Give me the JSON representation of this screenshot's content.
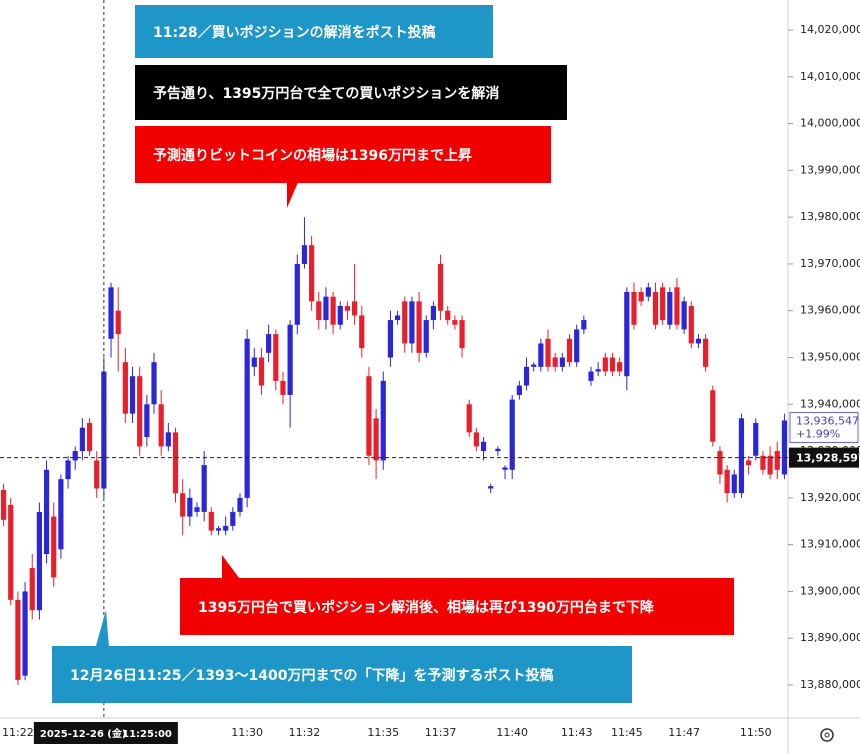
{
  "chart_data": {
    "type": "candlestick",
    "colors": {
      "up": "#2b27d9",
      "down": "#e8202c"
    },
    "categories": [
      null,
      null,
      "11:22",
      null,
      null,
      null,
      null,
      null,
      null,
      null,
      null,
      null,
      null,
      null,
      "11:25:00",
      null,
      null,
      null,
      null,
      null,
      null,
      null,
      null,
      null,
      null,
      null,
      null,
      null,
      null,
      null,
      null,
      null,
      null,
      null,
      "11:30",
      null,
      null,
      null,
      null,
      null,
      null,
      null,
      "11:32",
      null,
      null,
      null,
      null,
      null,
      null,
      null,
      null,
      null,
      null,
      "11:35",
      null,
      null,
      null,
      null,
      null,
      null,
      null,
      "11:37",
      null,
      null,
      null,
      null,
      null,
      null,
      null,
      null,
      null,
      "11:40",
      null,
      null,
      null,
      null,
      null,
      null,
      null,
      null,
      "11:43",
      null,
      null,
      null,
      null,
      null,
      null,
      "11:45",
      null,
      null,
      null,
      null,
      null,
      null,
      null,
      "11:47",
      null,
      null,
      null,
      null,
      null,
      null,
      null,
      null,
      null,
      "11:50",
      null,
      null,
      null,
      null
    ],
    "crosshair_date": "2025-12-26 (金)",
    "ohlc": [
      [
        13921700,
        13923000,
        13914000,
        13915300
      ],
      [
        13918500,
        13920000,
        13897000,
        13898200
      ],
      [
        13898200,
        13900000,
        13880000,
        13881100
      ],
      [
        13882000,
        13902000,
        13881000,
        13900000
      ],
      [
        13905000,
        13908000,
        13894000,
        13896000
      ],
      [
        13896000,
        13919000,
        13894000,
        13917000
      ],
      [
        13908000,
        13928000,
        13906000,
        13926000
      ],
      [
        13916000,
        13919000,
        13901000,
        13903000
      ],
      [
        13909000,
        13925000,
        13907000,
        13924000
      ],
      [
        13924000,
        13929000,
        13922000,
        13928000
      ],
      [
        13928000,
        13931000,
        13926000,
        13930000
      ],
      [
        13930000,
        13937000,
        13928000,
        13935000
      ],
      [
        13936000,
        13937000,
        13929000,
        13930000
      ],
      [
        13928000,
        13930000,
        13920000,
        13922000
      ],
      [
        13922000,
        13950000,
        13920000,
        13947000
      ],
      [
        13954000,
        13966000,
        13950000,
        13965000
      ],
      [
        13960000,
        13965000,
        13947000,
        13955000
      ],
      [
        13949000,
        13952000,
        13936000,
        13938000
      ],
      [
        13938000,
        13948000,
        13936000,
        13946000
      ],
      [
        13946000,
        13948000,
        13929000,
        13931000
      ],
      [
        13933000,
        13942000,
        13931000,
        13940000
      ],
      [
        13940000,
        13951000,
        13938000,
        13949000
      ],
      [
        13940000,
        13943000,
        13929000,
        13931000
      ],
      [
        13931000,
        13936000,
        13930000,
        13934000
      ],
      [
        13934000,
        13935000,
        13919000,
        13921000
      ],
      [
        13921000,
        13924000,
        13912000,
        13916000
      ],
      [
        13916000,
        13922000,
        13914000,
        13920000
      ],
      [
        13917000,
        13919000,
        13916000,
        13918000
      ],
      [
        13917000,
        13930000,
        13915000,
        13927000
      ],
      [
        13917000,
        13918000,
        13912000,
        13913000
      ],
      [
        13913000,
        13914000,
        13912000,
        13913500
      ],
      [
        13913000,
        13916000,
        13912000,
        13914000
      ],
      [
        13914000,
        13918000,
        13913000,
        13917000
      ],
      [
        13917000,
        13921000,
        13916000,
        13920000
      ],
      [
        13920000,
        13956000,
        13918000,
        13954000
      ],
      [
        13948000,
        13952000,
        13946000,
        13950000
      ],
      [
        13950000,
        13952000,
        13942000,
        13944000
      ],
      [
        13951000,
        13957000,
        13949000,
        13955000
      ],
      [
        13955000,
        13956000,
        13943000,
        13945000
      ],
      [
        13945000,
        13947000,
        13940000,
        13942000
      ],
      [
        13942000,
        13958000,
        13935000,
        13957000
      ],
      [
        13957000,
        13972000,
        13955000,
        13970000
      ],
      [
        13970000,
        13980000,
        13969000,
        13974000
      ],
      [
        13974000,
        13976000,
        13960000,
        13962000
      ],
      [
        13962000,
        13964000,
        13956000,
        13958000
      ],
      [
        13958000,
        13965000,
        13956000,
        13963000
      ],
      [
        13963000,
        13964000,
        13955000,
        13957000
      ],
      [
        13957000,
        13962000,
        13956000,
        13961000
      ],
      [
        13961000,
        13962000,
        13958000,
        13960000
      ],
      [
        13962000,
        13970000,
        13957000,
        13959000
      ],
      [
        13959000,
        13961000,
        13950000,
        13952000
      ],
      [
        13946000,
        13948000,
        13927000,
        13929000
      ],
      [
        13937000,
        13939000,
        13924000,
        13928000
      ],
      [
        13928000,
        13947000,
        13926000,
        13945000
      ],
      [
        13950000,
        13960000,
        13948000,
        13958000
      ],
      [
        13958000,
        13960000,
        13957000,
        13959000
      ],
      [
        13962000,
        13963000,
        13951000,
        13953000
      ],
      [
        13953000,
        13963000,
        13951000,
        13962000
      ],
      [
        13962000,
        13964000,
        13949000,
        13951000
      ],
      [
        13951000,
        13959000,
        13950000,
        13958000
      ],
      [
        13958000,
        13962000,
        13956000,
        13961000
      ],
      [
        13970000,
        13972000,
        13958000,
        13960000
      ],
      [
        13960000,
        13961000,
        13957000,
        13958000
      ],
      [
        13958000,
        13959000,
        13956000,
        13957000
      ],
      [
        13958000,
        13959000,
        13950000,
        13952000
      ],
      [
        13940000,
        13941000,
        13933000,
        13934000
      ],
      [
        13934000,
        13935000,
        13930000,
        13931000
      ],
      [
        13930000,
        13933000,
        13928000,
        13932000
      ],
      [
        13922000,
        13923000,
        13921000,
        13922500
      ],
      [
        13930000,
        13931000,
        13929000,
        13930500
      ],
      [
        13926000,
        13927000,
        13924000,
        13926500
      ],
      [
        13926000,
        13942000,
        13924000,
        13941000
      ],
      [
        13942000,
        13945000,
        13941000,
        13944000
      ],
      [
        13944000,
        13950000,
        13943000,
        13948000
      ],
      [
        13948000,
        13949000,
        13947000,
        13948500
      ],
      [
        13948000,
        13954000,
        13947000,
        13953000
      ],
      [
        13954000,
        13956000,
        13947000,
        13948000
      ],
      [
        13950000,
        13951000,
        13947000,
        13948000
      ],
      [
        13948000,
        13951000,
        13947000,
        13950000
      ],
      [
        13954000,
        13955000,
        13948000,
        13949000
      ],
      [
        13949000,
        13957000,
        13948000,
        13956000
      ],
      [
        13956000,
        13959000,
        13955000,
        13958000
      ],
      [
        13945000,
        13948000,
        13944000,
        13947000
      ],
      [
        13947000,
        13949000,
        13946000,
        13947500
      ],
      [
        13950000,
        13951000,
        13946000,
        13947000
      ],
      [
        13950000,
        13951000,
        13946000,
        13947000
      ],
      [
        13949000,
        13950000,
        13946000,
        13947000
      ],
      [
        13946000,
        13965000,
        13943000,
        13964000
      ],
      [
        13964000,
        13966000,
        13956000,
        13957000
      ],
      [
        13964000,
        13965000,
        13961000,
        13962000
      ],
      [
        13963000,
        13966000,
        13962000,
        13965000
      ],
      [
        13964000,
        13966000,
        13956000,
        13957000
      ],
      [
        13965000,
        13966000,
        13957000,
        13958000
      ],
      [
        13957000,
        13965000,
        13956000,
        13964000
      ],
      [
        13965000,
        13967000,
        13956000,
        13957000
      ],
      [
        13956000,
        13963000,
        13955000,
        13962000
      ],
      [
        13961000,
        13962000,
        13952000,
        13953000
      ],
      [
        13953000,
        13955000,
        13952000,
        13954000
      ],
      [
        13954000,
        13955000,
        13947000,
        13948000
      ],
      [
        13943000,
        13944000,
        13931000,
        13932000
      ],
      [
        13930000,
        13931000,
        13923000,
        13925000
      ],
      [
        13926000,
        13927000,
        13919000,
        13921000
      ],
      [
        13921000,
        13926000,
        13920000,
        13925000
      ],
      [
        13921000,
        13938000,
        13920000,
        13937000
      ],
      [
        13928000,
        13929000,
        13925000,
        13927000
      ],
      [
        13929000,
        13937000,
        13928000,
        13936000
      ],
      [
        13929000,
        13930000,
        13925000,
        13926000
      ],
      [
        13929000,
        13931000,
        13924000,
        13925000
      ],
      [
        13930000,
        13932000,
        13924000,
        13926000
      ],
      [
        13925000,
        13938000,
        13924000,
        13936547
      ]
    ],
    "ylim": [
      13872950,
      14026410
    ],
    "yticks": [
      {
        "value": 13880000,
        "label": "13,880,000"
      },
      {
        "value": 13890000,
        "label": "13,890,000"
      },
      {
        "value": 13900000,
        "label": "13,900,000"
      },
      {
        "value": 13910000,
        "label": "13,910,000"
      },
      {
        "value": 13920000,
        "label": "13,920,000"
      },
      {
        "value": 13930000,
        "label": "13,930,000"
      },
      {
        "value": 13940000,
        "label": "13,940,000"
      },
      {
        "value": 13950000,
        "label": "13,950,000"
      },
      {
        "value": 13960000,
        "label": "13,960,000"
      },
      {
        "value": 13970000,
        "label": "13,970,000"
      },
      {
        "value": 13980000,
        "label": "13,980,000"
      },
      {
        "value": 13990000,
        "label": "13,990,000"
      },
      {
        "value": 14000000,
        "label": "14,000,000"
      },
      {
        "value": 14010000,
        "label": "14,010,000"
      },
      {
        "value": 14020000,
        "label": "14,020,000"
      }
    ],
    "grid": false,
    "last_price": {
      "value": 13928597,
      "label": "13,928,597"
    },
    "current_price": {
      "value": 13936547,
      "label": "13,936,547",
      "change": "+1.99%"
    }
  },
  "annotations": [
    "11:28／買いポジションの解消をポスト投稿",
    "予告通り、1395万円台で全ての買いポジションを解消",
    "予測通りビットコインの相場は1396万円まで上昇",
    "1395万円台で買いポジション解消後、相場は再び1390万円台まで下降",
    "12月26日11:25／1393〜1400万円までの「下降」を予測するポスト投稿"
  ]
}
